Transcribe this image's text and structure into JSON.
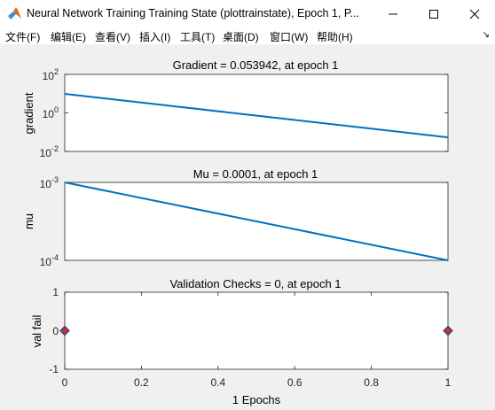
{
  "window": {
    "title": "Neural Network Training Training State (plottrainstate), Epoch 1, P...",
    "app_icon": "matlab-icon",
    "buttons": {
      "minimize": "minimize-icon",
      "maximize": "maximize-icon",
      "close": "close-icon"
    }
  },
  "menu": {
    "items": [
      "文件(F)",
      "编辑(E)",
      "查看(V)",
      "插入(I)",
      "工具(T)",
      "桌面(D)",
      "窗口(W)",
      "帮助(H)"
    ],
    "overflow_icon": "overflow-arrow-icon"
  },
  "colors": {
    "line": "#0072bd",
    "marker_fill": "#d62728",
    "marker_edge": "#1f4e9c",
    "axes_bg": "#ffffff"
  },
  "chart_data": [
    {
      "type": "line",
      "title": "Gradient = 0.053942, at epoch 1",
      "ylabel": "gradient",
      "yscale": "log",
      "ylim": [
        0.01,
        100
      ],
      "y_ticks": [
        {
          "base": "10",
          "exp": "-2"
        },
        {
          "base": "10",
          "exp": "0"
        },
        {
          "base": "10",
          "exp": "2"
        }
      ],
      "x": [
        0,
        1
      ],
      "y": [
        9.7,
        0.053942
      ],
      "xlim": [
        0,
        1
      ]
    },
    {
      "type": "line",
      "title": "Mu = 0.0001, at epoch 1",
      "ylabel": "mu",
      "yscale": "log",
      "ylim": [
        0.0001,
        0.001
      ],
      "y_ticks": [
        {
          "base": "10",
          "exp": "-4"
        },
        {
          "base": "10",
          "exp": "-3"
        }
      ],
      "x": [
        0,
        1
      ],
      "y": [
        0.001,
        0.0001
      ],
      "xlim": [
        0,
        1
      ]
    },
    {
      "type": "scatter",
      "title": "Validation Checks = 0, at epoch 1",
      "ylabel": "val fail",
      "xlabel": "1 Epochs",
      "ylim": [
        -1,
        1
      ],
      "y_ticks": [
        "1",
        "0",
        "-1"
      ],
      "x_ticks": [
        "0",
        "0.2",
        "0.4",
        "0.6",
        "0.8",
        "1"
      ],
      "x": [
        0,
        1
      ],
      "y": [
        0,
        0
      ],
      "xlim": [
        0,
        1
      ]
    }
  ]
}
